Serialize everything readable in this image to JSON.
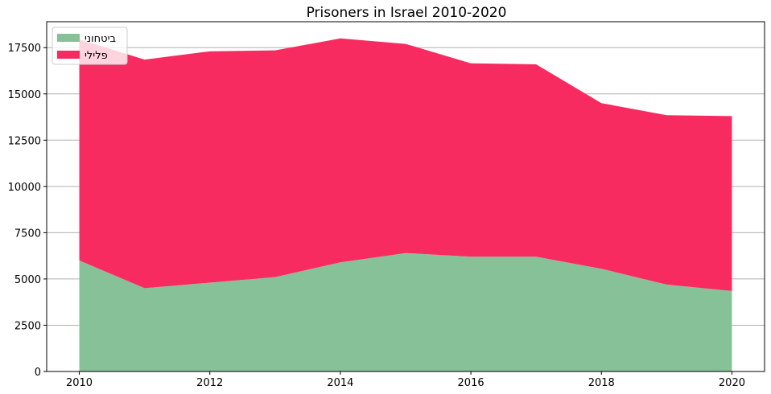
{
  "chart_data": {
    "type": "area",
    "stacked": true,
    "title": "Prisoners in Israel 2010-2020",
    "xlabel": "",
    "ylabel": "",
    "x": [
      2010,
      2011,
      2012,
      2013,
      2014,
      2015,
      2016,
      2017,
      2018,
      2019,
      2020
    ],
    "xlim": [
      2009.5,
      2020.5
    ],
    "ylim": [
      0,
      18900
    ],
    "x_ticks": [
      2010,
      2012,
      2014,
      2016,
      2018,
      2020
    ],
    "y_ticks": [
      0,
      2500,
      5000,
      7500,
      10000,
      12500,
      15000,
      17500
    ],
    "grid": "horizontal",
    "legend_position": "top-left",
    "series": [
      {
        "name": "ביטחוני",
        "color": "#86c198",
        "values": [
          6000,
          4500,
          4800,
          5100,
          5900,
          6400,
          6200,
          6200,
          5550,
          4700,
          4350
        ]
      },
      {
        "name": "פלילי",
        "color": "#f72b60",
        "values": [
          11950,
          12350,
          12500,
          12250,
          12100,
          11300,
          10450,
          10400,
          8950,
          9150,
          9450
        ]
      }
    ]
  }
}
